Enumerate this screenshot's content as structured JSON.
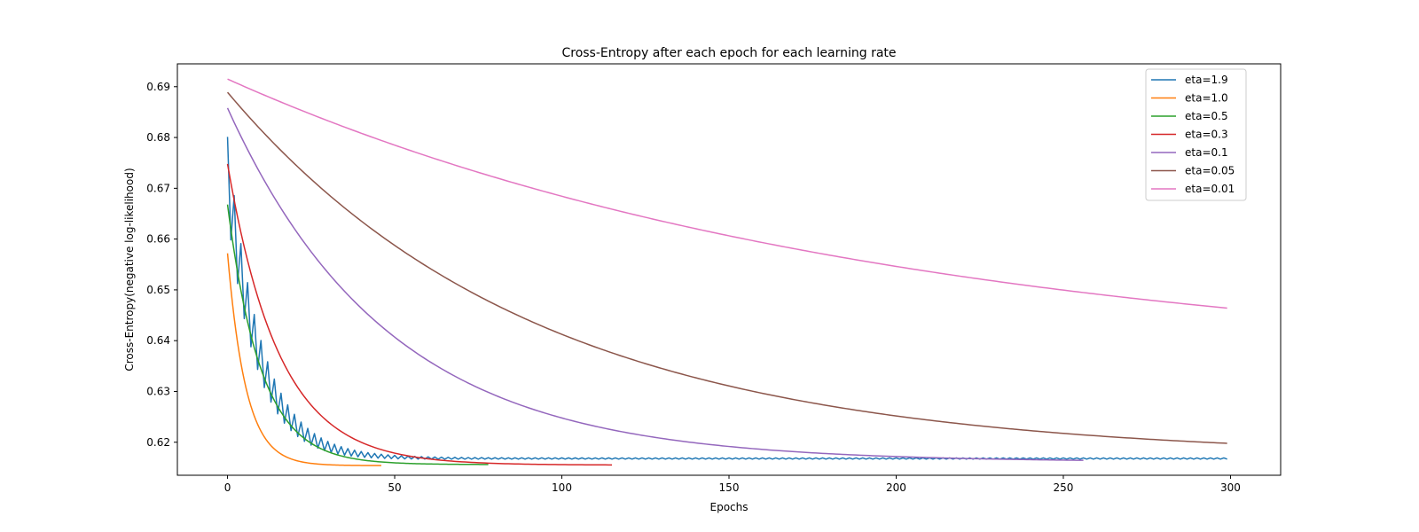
{
  "chart_data": {
    "type": "line",
    "title": "Cross-Entropy after each epoch for each learning rate",
    "xlabel": "Epochs",
    "ylabel": "Cross-Entropy(negative log-likelihood)",
    "xlim": [
      -15,
      315
    ],
    "ylim": [
      0.6135,
      0.6945
    ],
    "xticks": [
      0,
      50,
      100,
      150,
      200,
      250,
      300
    ],
    "yticks": [
      0.62,
      0.63,
      0.64,
      0.65,
      0.66,
      0.67,
      0.68,
      0.69
    ],
    "legend_position": "top-right",
    "grid": false,
    "series": [
      {
        "name": "eta=1.9",
        "color": "#1f77b4",
        "model": {
          "start": 0.6725,
          "asymptote": 0.6168,
          "tau": 9.5,
          "osc_amplitude": 0.0075,
          "osc_tau": 14,
          "end_epoch": 299,
          "step": 1
        }
      },
      {
        "name": "eta=1.0",
        "color": "#ff7f0e",
        "model": {
          "start": 0.6572,
          "asymptote": 0.6154,
          "tau": 5.5,
          "end_epoch": 46,
          "step": 0.5
        }
      },
      {
        "name": "eta=0.5",
        "color": "#2ca02c",
        "model": {
          "start": 0.6668,
          "asymptote": 0.6156,
          "tau": 10,
          "end_epoch": 78,
          "step": 0.5
        }
      },
      {
        "name": "eta=0.3",
        "color": "#d62728",
        "model": {
          "start": 0.6748,
          "asymptote": 0.6155,
          "tau": 15.5,
          "end_epoch": 115,
          "step": 1
        }
      },
      {
        "name": "eta=0.1",
        "color": "#9467bd",
        "model": {
          "start": 0.6858,
          "asymptote": 0.6161,
          "tau": 48,
          "end_epoch": 256,
          "step": 1
        }
      },
      {
        "name": "eta=0.05",
        "color": "#8c564b",
        "model": {
          "start": 0.6889,
          "asymptote": 0.617,
          "tau": 92,
          "end_epoch": 299,
          "step": 1
        }
      },
      {
        "name": "eta=0.01",
        "color": "#e377c2",
        "model": {
          "start": 0.6915,
          "asymptote": 0.634,
          "tau": 195,
          "end_epoch": 299,
          "step": 1
        }
      }
    ]
  }
}
